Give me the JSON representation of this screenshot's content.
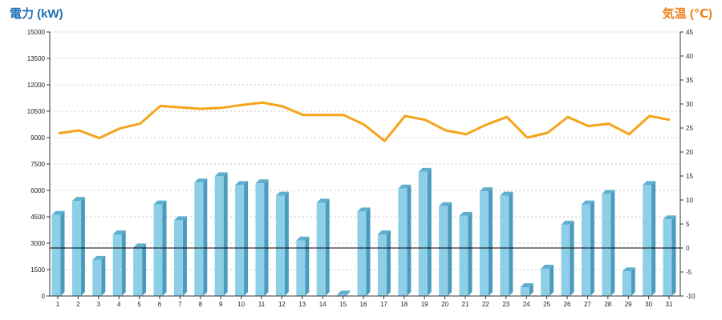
{
  "chart_data": {
    "type": "bar+line",
    "left_axis": {
      "title": "電力 (kW)",
      "title_color": "#1f6fb4",
      "ticks": [
        0,
        1500,
        3000,
        4500,
        6000,
        7500,
        9000,
        10500,
        12000,
        13500,
        15000
      ],
      "ylim": [
        0,
        15000
      ]
    },
    "right_axis": {
      "title": "気温 (℃)",
      "title_color": "#f07f1a",
      "ticks": [
        -10,
        -5,
        0,
        5,
        10,
        15,
        20,
        25,
        30,
        35,
        40,
        45
      ],
      "ylim": [
        -10,
        45
      ]
    },
    "categories": [
      "1",
      "2",
      "3",
      "4",
      "5",
      "6",
      "7",
      "8",
      "9",
      "10",
      "11",
      "12",
      "13",
      "14",
      "15",
      "16",
      "17",
      "18",
      "19",
      "20",
      "21",
      "22",
      "23",
      "24",
      "25",
      "26",
      "27",
      "28",
      "29",
      "30",
      "31"
    ],
    "series": [
      {
        "type": "bar",
        "axis": "left",
        "color": "#8ecfe8",
        "values": [
          4600,
          5400,
          2050,
          3500,
          2750,
          5200,
          4300,
          6450,
          6800,
          6300,
          6400,
          5700,
          3150,
          5300,
          80,
          4800,
          3500,
          6100,
          7050,
          5100,
          4550,
          5950,
          5700,
          500,
          1550,
          4050,
          5200,
          5800,
          1400,
          6300,
          4350
        ]
      },
      {
        "type": "line",
        "axis": "right",
        "color": "#f5a31a",
        "values": [
          23.9,
          24.5,
          22.9,
          24.9,
          25.9,
          29.6,
          29.3,
          29.0,
          29.2,
          29.8,
          30.3,
          29.5,
          27.7,
          27.7,
          27.7,
          25.7,
          22.3,
          27.5,
          26.7,
          24.5,
          23.7,
          25.7,
          27.3,
          23.0,
          24.0,
          27.3,
          25.4,
          25.9,
          23.7,
          27.5,
          26.7
        ]
      }
    ],
    "reference_line": {
      "axis": "right",
      "value": 0,
      "color": "#000000"
    },
    "grid": true
  }
}
